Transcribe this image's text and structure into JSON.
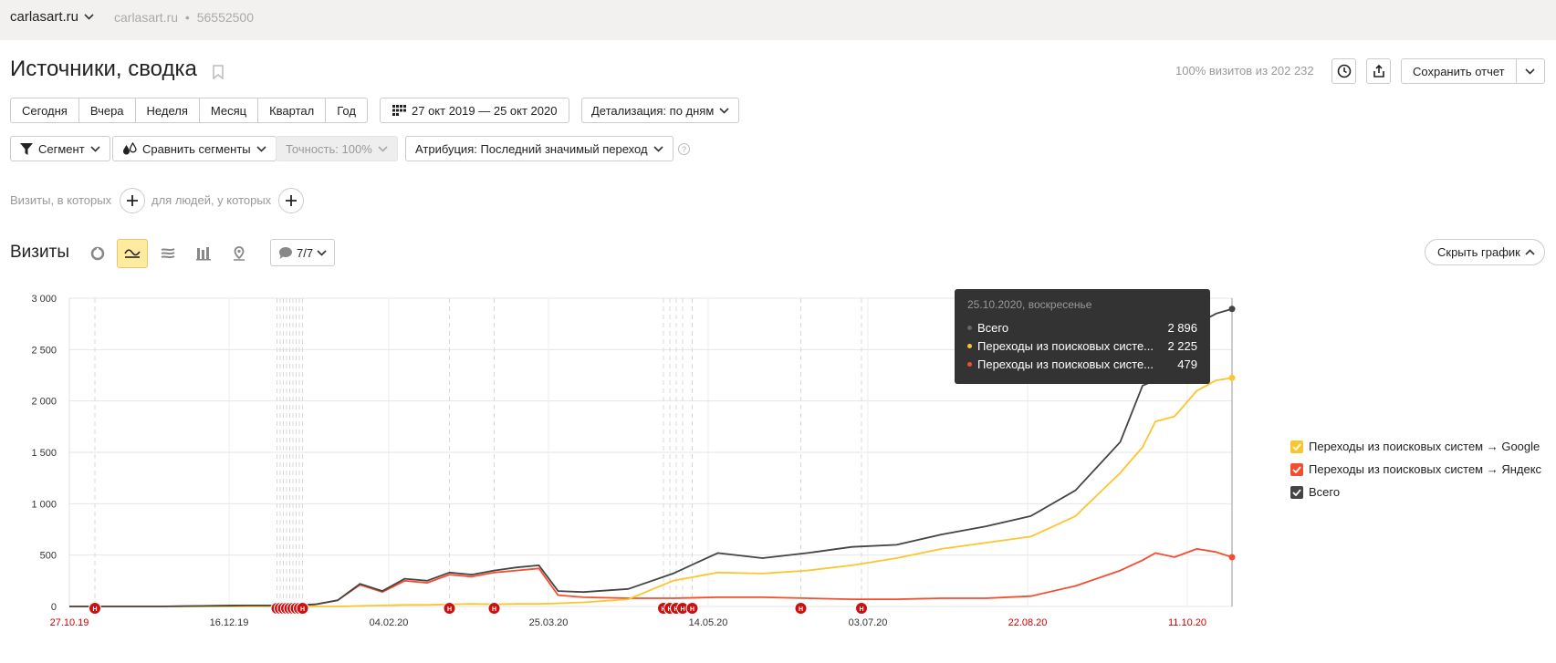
{
  "header": {
    "site": "carlasart.ru",
    "site_meta_domain": "carlasart.ru",
    "site_meta_id": "56552500",
    "meta_separator": "•"
  },
  "report": {
    "title": "Источники, сводка",
    "share_info": "100% визитов из 202 232",
    "save_label": "Сохранить отчет"
  },
  "periods": [
    "Сегодня",
    "Вчера",
    "Неделя",
    "Месяц",
    "Квартал",
    "Год"
  ],
  "date_range": "27 окт 2019 — 25 окт 2020",
  "detail": "Детализация: по дням",
  "segment_label": "Сегмент",
  "compare_label": "Сравнить сегменты",
  "accuracy_label": "Точность: 100%",
  "attribution_label": "Атрибуция: Последний значимый переход",
  "help_symbol": "?",
  "filters": {
    "visits_text": "Визиты, в которых",
    "people_text": "для людей, у которых"
  },
  "chart_header": {
    "title": "Визиты",
    "notes_count": "7/7",
    "hide_chart": "Скрыть график"
  },
  "note_marker_letter": "Н",
  "tooltip": {
    "date": "25.10.2020, воскресенье",
    "rows": [
      {
        "name": "Всего",
        "value": "2 896",
        "color": "#666666"
      },
      {
        "name": "Переходы из поисковых систе...",
        "value": "2 225",
        "color": "#fbc52d"
      },
      {
        "name": "Переходы из поисковых систе...",
        "value": "479",
        "color": "#f34e2e"
      }
    ]
  },
  "legend": [
    {
      "label": "Переходы из поисковых систем → Google",
      "color": "#fbc52d",
      "checked": true
    },
    {
      "label": "Переходы из поисковых систем → Яндекс",
      "color": "#f34e2e",
      "checked": true
    },
    {
      "label": "Всего",
      "color": "#444444",
      "checked": true
    }
  ],
  "colors": {
    "total": "#444444",
    "google": "#fbc52d",
    "yandex": "#f34e2e",
    "holiday": "#cc0000",
    "note": "#cc1111"
  },
  "chart_data": {
    "type": "line",
    "x_axis": "date",
    "x_range": [
      "2019-10-27",
      "2020-10-25"
    ],
    "ylim": [
      0,
      3000
    ],
    "yticks": [
      0,
      500,
      1000,
      1500,
      2000,
      2500,
      3000
    ],
    "ytick_labels": [
      "0",
      "500",
      "1 000",
      "1 500",
      "2 000",
      "2 500",
      "3 000"
    ],
    "xticks": [
      {
        "date": "2019-10-27",
        "label": "27.10.19",
        "holiday": true
      },
      {
        "date": "2019-12-16",
        "label": "16.12.19",
        "holiday": false
      },
      {
        "date": "2020-02-04",
        "label": "04.02.20",
        "holiday": false
      },
      {
        "date": "2020-03-25",
        "label": "25.03.20",
        "holiday": false
      },
      {
        "date": "2020-05-14",
        "label": "14.05.20",
        "holiday": false
      },
      {
        "date": "2020-07-03",
        "label": "03.07.20",
        "holiday": false
      },
      {
        "date": "2020-08-22",
        "label": "22.08.20",
        "holiday": true
      },
      {
        "date": "2020-10-11",
        "label": "11.10.20",
        "holiday": true
      }
    ],
    "notes": [
      "2019-11-04",
      "2019-12-31",
      "2020-01-01",
      "2020-01-02",
      "2020-01-03",
      "2020-01-04",
      "2020-01-05",
      "2020-01-06",
      "2020-01-07",
      "2020-01-08",
      "2020-02-23",
      "2020-03-08",
      "2020-04-30",
      "2020-05-02",
      "2020-05-04",
      "2020-05-06",
      "2020-05-09",
      "2020-06-12",
      "2020-07-01"
    ],
    "series": [
      {
        "name": "Всего",
        "x": [
          "2019-10-27",
          "2019-11-10",
          "2019-11-24",
          "2019-12-08",
          "2019-12-22",
          "2020-01-05",
          "2020-01-12",
          "2020-01-19",
          "2020-01-26",
          "2020-02-02",
          "2020-02-09",
          "2020-02-16",
          "2020-02-23",
          "2020-03-01",
          "2020-03-08",
          "2020-03-15",
          "2020-03-22",
          "2020-03-28",
          "2020-04-05",
          "2020-04-19",
          "2020-05-03",
          "2020-05-17",
          "2020-05-31",
          "2020-06-14",
          "2020-06-28",
          "2020-07-12",
          "2020-07-26",
          "2020-08-09",
          "2020-08-23",
          "2020-09-06",
          "2020-09-20",
          "2020-09-27",
          "2020-10-01",
          "2020-10-07",
          "2020-10-14",
          "2020-10-20",
          "2020-10-25"
        ],
        "values": [
          0,
          0,
          0,
          5,
          10,
          10,
          20,
          60,
          220,
          150,
          270,
          250,
          330,
          310,
          350,
          380,
          400,
          150,
          140,
          170,
          320,
          520,
          470,
          520,
          580,
          600,
          700,
          780,
          880,
          1130,
          1600,
          2150,
          2200,
          2550,
          2750,
          2850,
          2896
        ]
      },
      {
        "name": "Переходы из поисковых систем → Google",
        "x": [
          "2019-10-27",
          "2019-11-10",
          "2019-11-24",
          "2019-12-08",
          "2019-12-22",
          "2020-01-05",
          "2020-01-12",
          "2020-01-19",
          "2020-01-26",
          "2020-02-02",
          "2020-02-09",
          "2020-02-16",
          "2020-02-23",
          "2020-03-01",
          "2020-03-08",
          "2020-03-15",
          "2020-03-22",
          "2020-03-28",
          "2020-04-05",
          "2020-04-19",
          "2020-05-03",
          "2020-05-17",
          "2020-05-31",
          "2020-06-14",
          "2020-06-28",
          "2020-07-12",
          "2020-07-26",
          "2020-08-09",
          "2020-08-23",
          "2020-09-06",
          "2020-09-20",
          "2020-09-27",
          "2020-10-01",
          "2020-10-07",
          "2020-10-14",
          "2020-10-20",
          "2020-10-25"
        ],
        "values": [
          0,
          0,
          0,
          0,
          0,
          0,
          0,
          0,
          5,
          10,
          15,
          15,
          20,
          25,
          20,
          25,
          25,
          30,
          40,
          70,
          250,
          330,
          320,
          350,
          400,
          470,
          560,
          620,
          680,
          880,
          1300,
          1550,
          1800,
          1850,
          2100,
          2200,
          2225
        ]
      },
      {
        "name": "Переходы из поисковых систем → Яндекс",
        "x": [
          "2019-10-27",
          "2019-11-10",
          "2019-11-24",
          "2019-12-08",
          "2019-12-22",
          "2020-01-05",
          "2020-01-12",
          "2020-01-19",
          "2020-01-26",
          "2020-02-02",
          "2020-02-09",
          "2020-02-16",
          "2020-02-23",
          "2020-03-01",
          "2020-03-08",
          "2020-03-15",
          "2020-03-22",
          "2020-03-28",
          "2020-04-05",
          "2020-04-19",
          "2020-05-03",
          "2020-05-17",
          "2020-05-31",
          "2020-06-14",
          "2020-06-28",
          "2020-07-12",
          "2020-07-26",
          "2020-08-09",
          "2020-08-23",
          "2020-09-06",
          "2020-09-20",
          "2020-09-27",
          "2020-10-01",
          "2020-10-07",
          "2020-10-14",
          "2020-10-20",
          "2020-10-25"
        ],
        "values": [
          0,
          0,
          0,
          5,
          10,
          10,
          20,
          60,
          210,
          140,
          250,
          230,
          310,
          290,
          330,
          350,
          370,
          110,
          90,
          80,
          80,
          90,
          90,
          80,
          70,
          70,
          80,
          80,
          100,
          200,
          350,
          450,
          520,
          480,
          560,
          530,
          479
        ]
      }
    ]
  }
}
